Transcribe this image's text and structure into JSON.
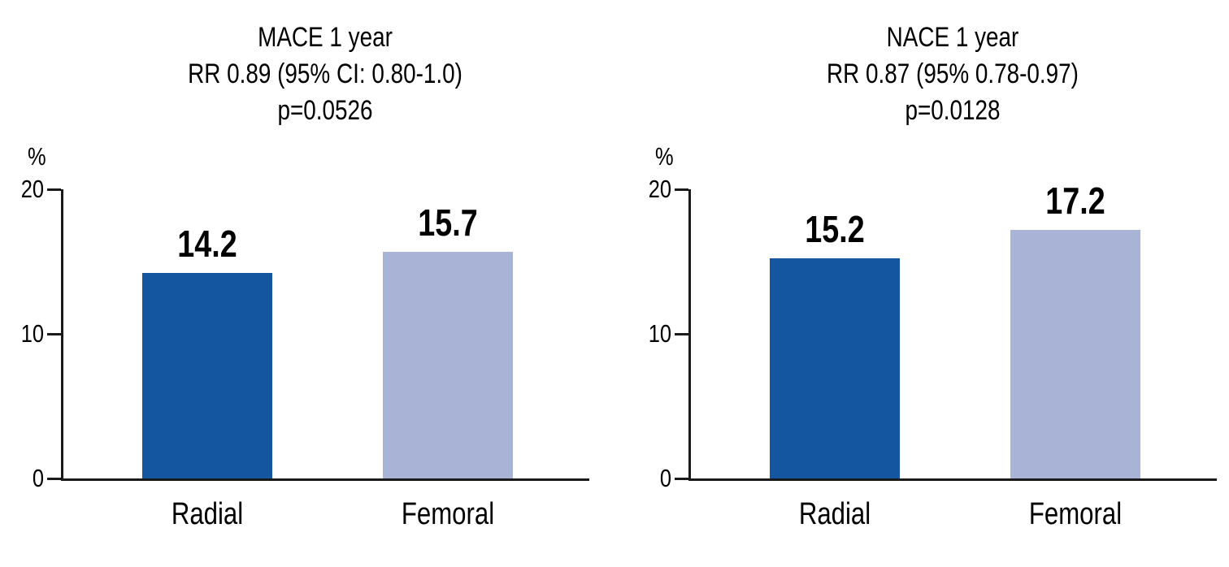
{
  "figure": {
    "background": "#ffffff"
  },
  "colors": {
    "bar_series": [
      "#1556a0",
      "#a8b3d6"
    ],
    "axis": "#1a1a1a",
    "text": "#000000"
  },
  "chart_data": [
    {
      "type": "bar",
      "title": "MACE 1 year",
      "subtitle": "RR 0.89 (95% CI: 0.80-1.0)",
      "p_value_label": "p=0.0526",
      "ylabel": "%",
      "ylim": [
        0,
        20
      ],
      "yticks": [
        0,
        10,
        20
      ],
      "categories": [
        "Radial",
        "Femoral"
      ],
      "values": [
        14.2,
        15.7
      ],
      "grid": false,
      "legend": "none"
    },
    {
      "type": "bar",
      "title": "NACE 1 year",
      "subtitle": "RR 0.87 (95% 0.78-0.97)",
      "p_value_label": "p=0.0128",
      "ylabel": "%",
      "ylim": [
        0,
        20
      ],
      "yticks": [
        0,
        10,
        20
      ],
      "categories": [
        "Radial",
        "Femoral"
      ],
      "values": [
        15.2,
        17.2
      ],
      "grid": false,
      "legend": "none"
    }
  ]
}
